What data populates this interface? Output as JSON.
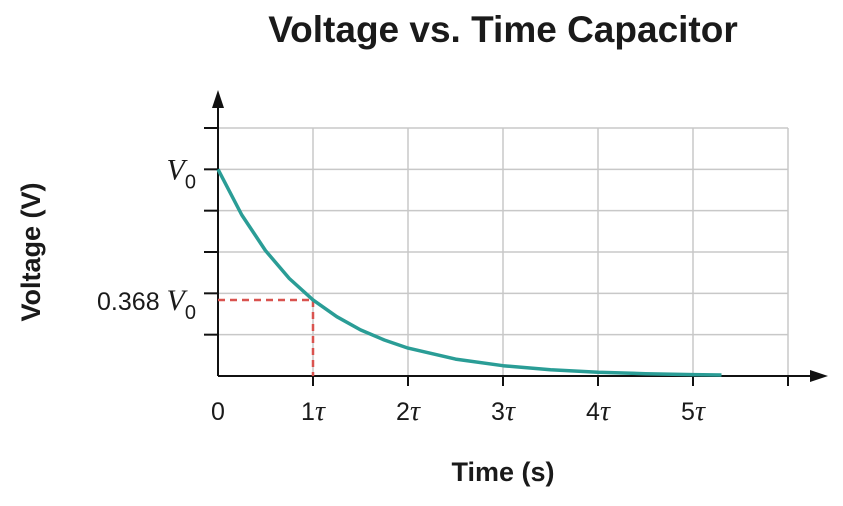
{
  "chart_data": {
    "type": "line",
    "title": "Voltage vs. Time Capacitor",
    "xlabel": "Time (s)",
    "ylabel": "Voltage (V)",
    "x_tick_labels": [
      "0",
      "1",
      "2",
      "3",
      "4",
      "5"
    ],
    "x_tick_unit": "τ",
    "x": [
      0,
      0.25,
      0.5,
      0.75,
      1,
      1.25,
      1.5,
      1.75,
      2,
      2.5,
      3,
      3.5,
      4,
      4.5,
      5,
      5.3
    ],
    "y": [
      1,
      0.779,
      0.607,
      0.472,
      0.368,
      0.287,
      0.223,
      0.174,
      0.135,
      0.082,
      0.05,
      0.03,
      0.018,
      0.011,
      0.007,
      0.005
    ],
    "xlim": [
      0,
      6
    ],
    "ylim": [
      0,
      1.2
    ],
    "x_grid_step": 1,
    "y_grid_step": 0.2,
    "y_tick_labels": [
      {
        "value": 1,
        "symbol": "V",
        "subscript": "0",
        "prefix": ""
      },
      {
        "value": 0.368,
        "symbol": "V",
        "subscript": "0",
        "prefix": "0.368 "
      }
    ],
    "annotation": {
      "x": 1,
      "y": 0.368,
      "style": "dashed",
      "color": "#d9534f"
    },
    "grid": true,
    "line_color": "#2a9d96"
  }
}
